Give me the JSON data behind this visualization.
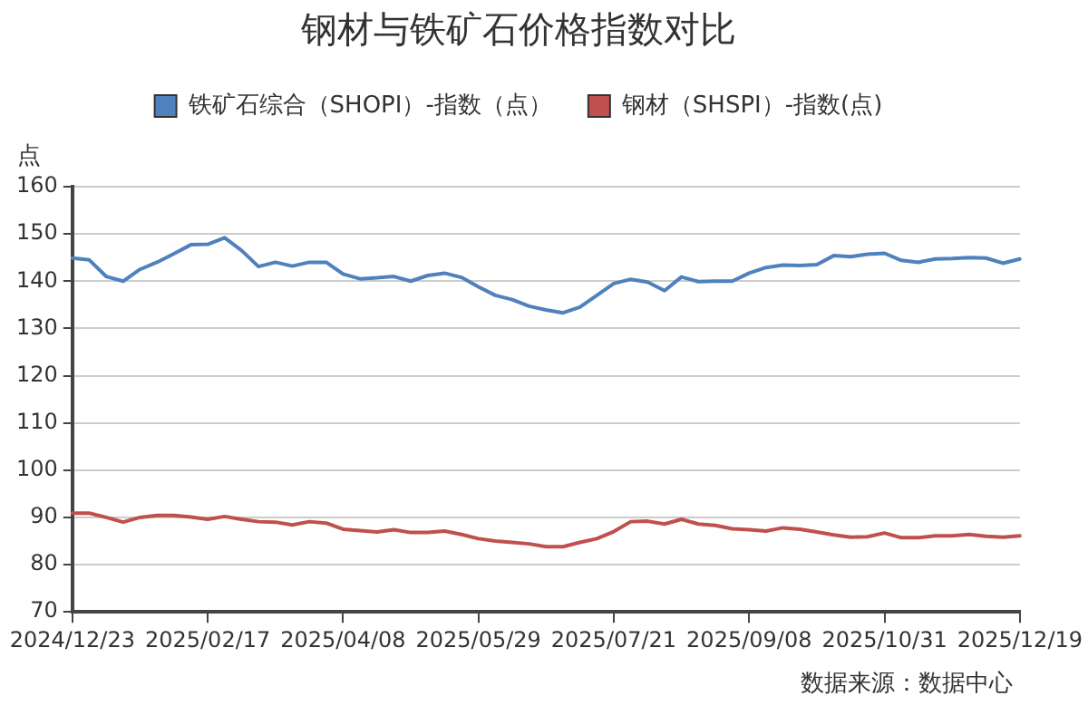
{
  "chart_data": {
    "type": "line",
    "title": "钢材与铁矿石价格指数对比",
    "ylabel": "点",
    "categories": [
      "2024/12/23",
      null,
      null,
      null,
      null,
      null,
      null,
      null,
      "2025/02/17",
      null,
      null,
      null,
      null,
      null,
      null,
      null,
      "2025/04/08",
      null,
      null,
      null,
      null,
      null,
      null,
      null,
      "2025/05/29",
      null,
      null,
      null,
      null,
      null,
      null,
      null,
      "2025/07/21",
      null,
      null,
      null,
      null,
      null,
      null,
      null,
      "2025/09/08",
      null,
      null,
      null,
      null,
      null,
      null,
      null,
      "2025/10/31",
      null,
      null,
      null,
      null,
      null,
      null,
      null,
      "2025/12/19"
    ],
    "series": [
      {
        "name": "铁矿石综合（SHOPI）-指数（点）",
        "color": "#4f81bd",
        "values": [
          144.9,
          144.5,
          141,
          140,
          142.5,
          144,
          145.8,
          147.7,
          147.8,
          149.2,
          146.5,
          143.1,
          144,
          143.2,
          144,
          144,
          141.5,
          140.5,
          140.7,
          141,
          140,
          141.2,
          141.7,
          140.8,
          138.8,
          137,
          136.1,
          134.7,
          133.9,
          133.3,
          134.5,
          137,
          139.5,
          140.4,
          139.8,
          138,
          140.9,
          139.9,
          140,
          140,
          141.7,
          142.9,
          143.4,
          143.3,
          143.5,
          145.4,
          145.2,
          145.7,
          145.9,
          144.4,
          144,
          144.7,
          144.8,
          145,
          144.9,
          143.8,
          144.7
        ]
      },
      {
        "name": "钢材（SHSPI）-指数(点)",
        "color": "#c0504d",
        "values": [
          90.9,
          90.9,
          90,
          89,
          90,
          90.4,
          90.4,
          90.1,
          89.6,
          90.2,
          89.6,
          89.1,
          89,
          88.4,
          89.1,
          88.8,
          87.5,
          87.2,
          86.9,
          87.4,
          86.8,
          86.8,
          87.1,
          86.4,
          85.5,
          85,
          84.7,
          84.4,
          83.8,
          83.8,
          84.7,
          85.5,
          87,
          89.1,
          89.2,
          88.6,
          89.6,
          88.6,
          88.3,
          87.6,
          87.4,
          87.1,
          87.8,
          87.5,
          86.9,
          86.3,
          85.8,
          85.9,
          86.7,
          85.7,
          85.7,
          86.1,
          86.1,
          86.4,
          86,
          85.8,
          86.1
        ]
      }
    ],
    "ylim": [
      70,
      160
    ],
    "yticks": [
      70,
      80,
      90,
      100,
      110,
      120,
      130,
      140,
      150,
      160
    ],
    "grid": "y",
    "legend": "top",
    "marker": "none",
    "line_style": "solid",
    "annotations": [
      "数据来源：数据中心"
    ]
  }
}
